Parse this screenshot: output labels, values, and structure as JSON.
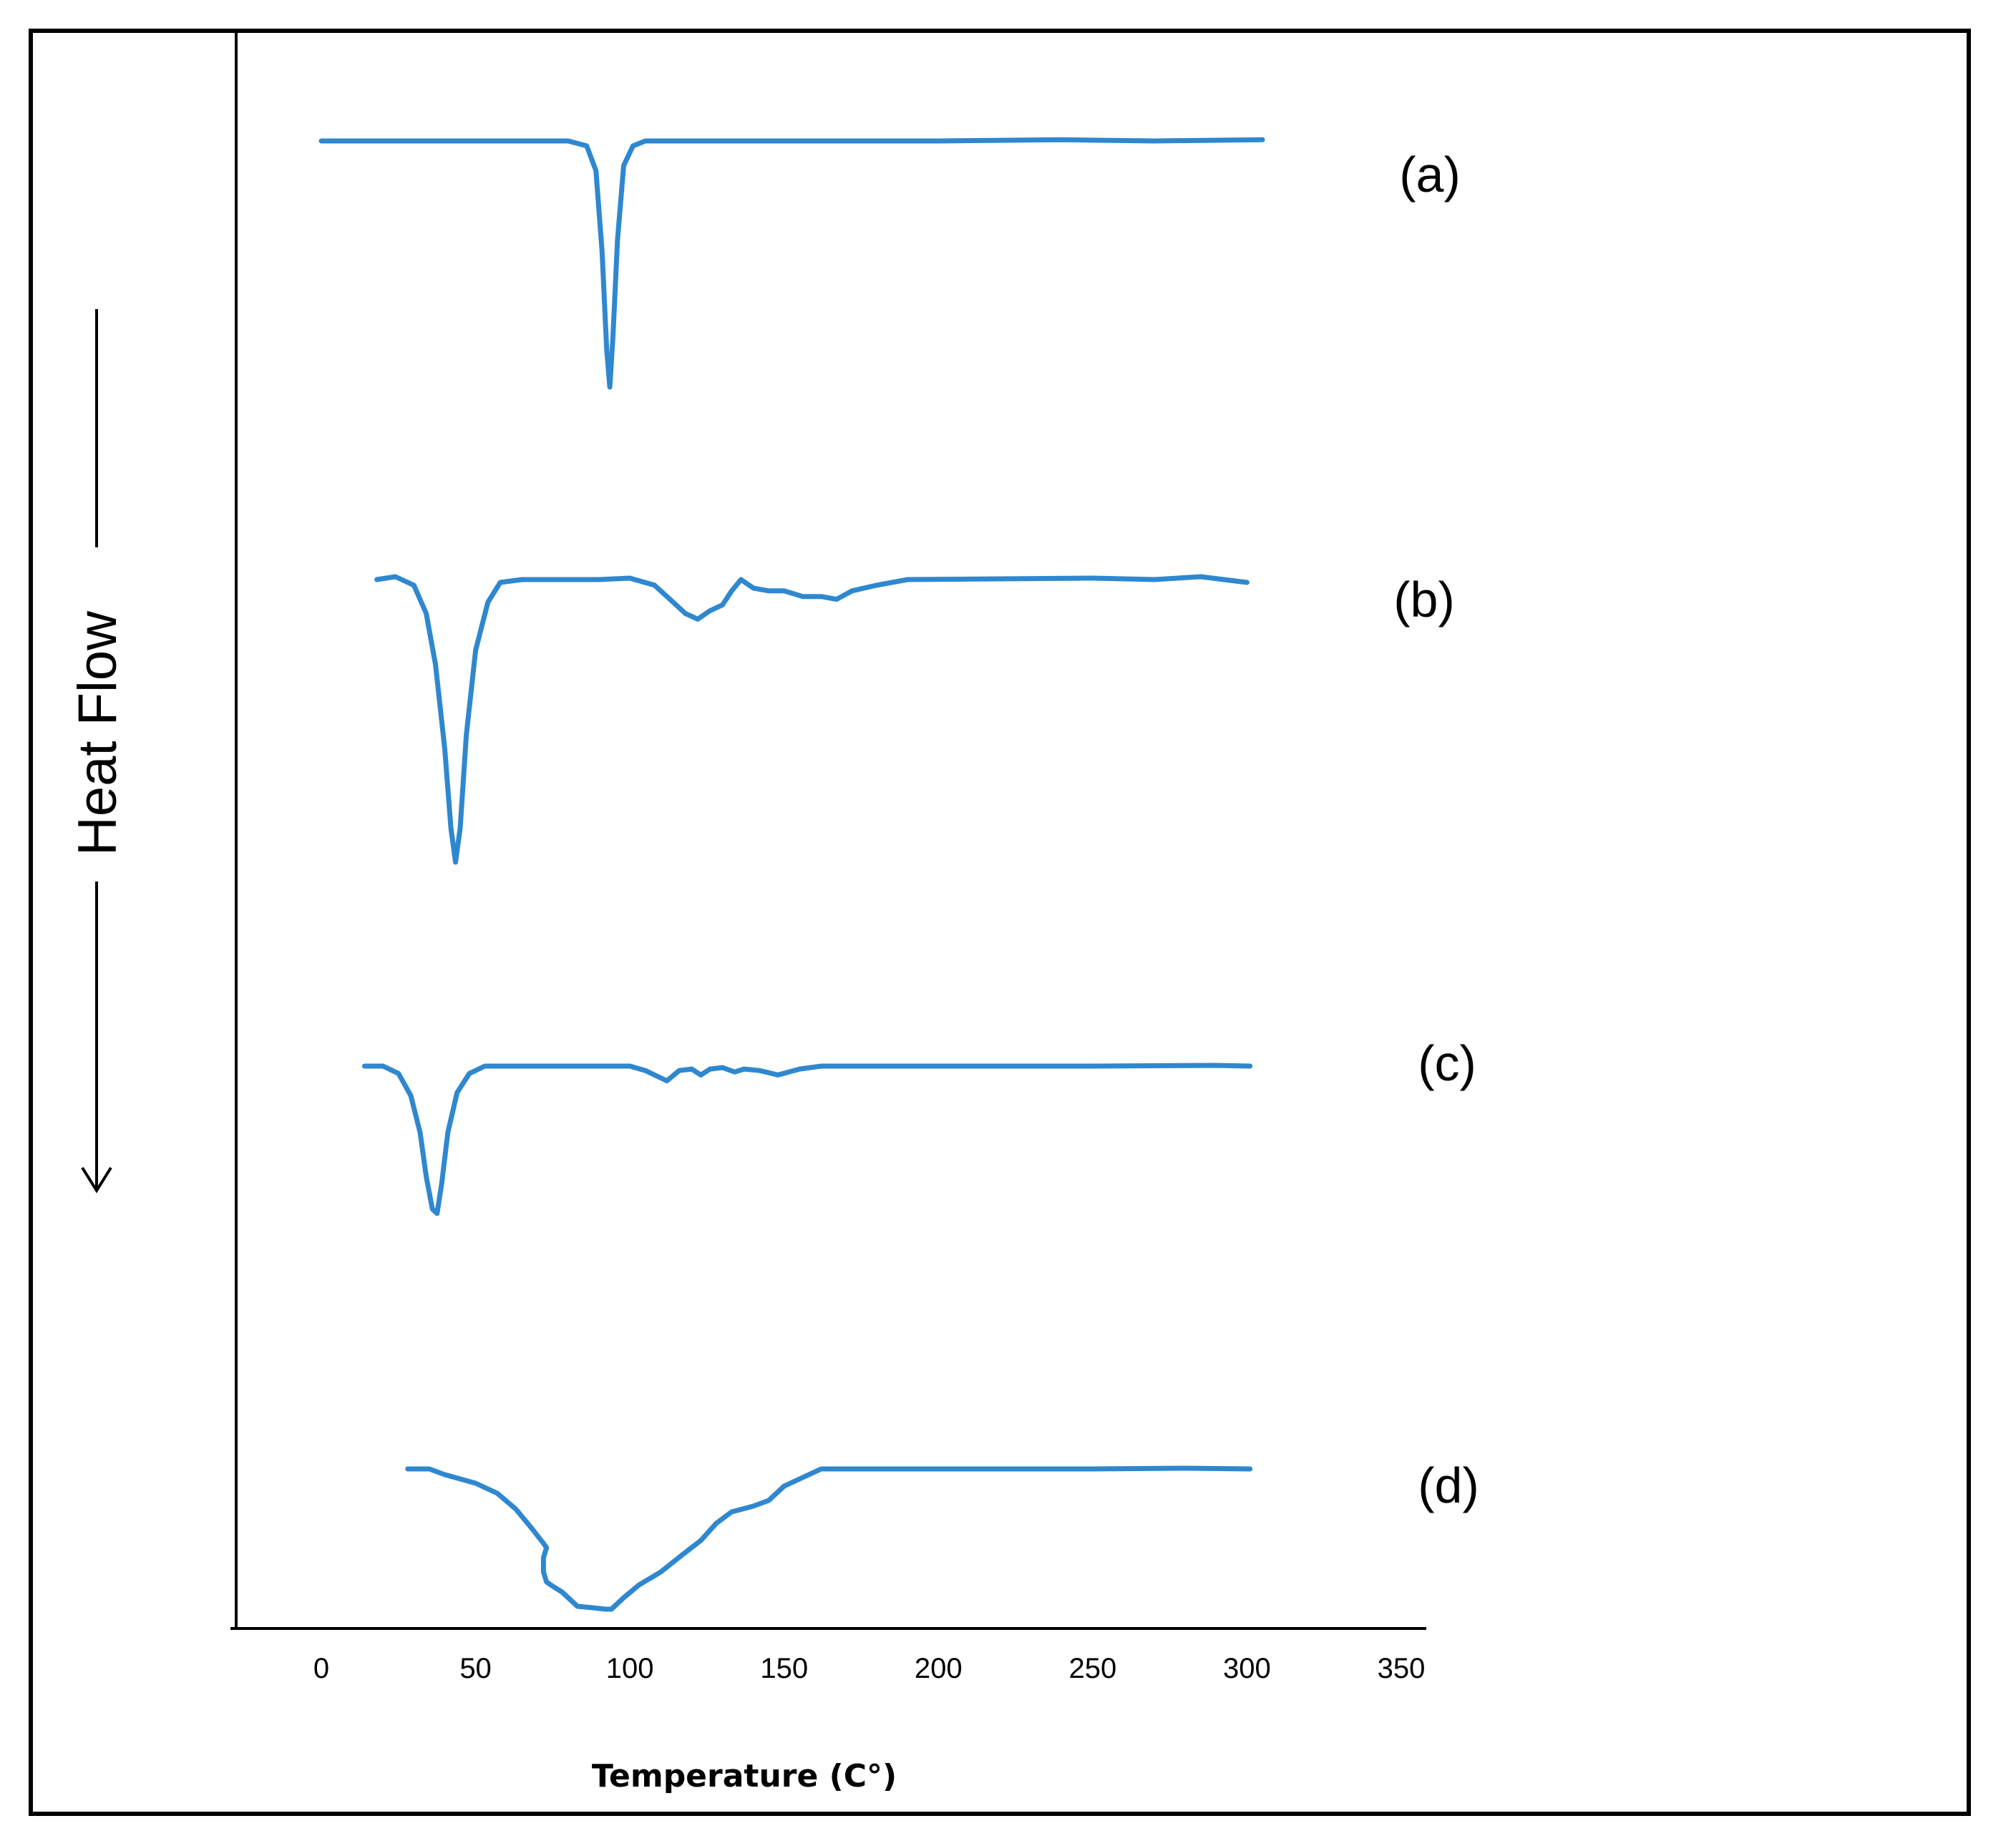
{
  "chart_data": {
    "type": "line",
    "title": "",
    "xlabel": "Temperature (C°)",
    "ylabel": "Heat Flow",
    "y_direction_note": "arrow",
    "xlim": [
      -28,
      358
    ],
    "x_ticks": [
      0,
      50,
      100,
      150,
      200,
      250,
      300,
      350
    ],
    "grid": false,
    "legend": "none",
    "line_color": "#2F88CF",
    "series": [
      {
        "name": "(a)",
        "baseline": 0,
        "points": [
          [
            0,
            0
          ],
          [
            30,
            0
          ],
          [
            60,
            0
          ],
          [
            80,
            0
          ],
          [
            86,
            -0.02
          ],
          [
            89,
            -0.12
          ],
          [
            91,
            -0.45
          ],
          [
            92.5,
            -0.85
          ],
          [
            93.5,
            -1.0
          ],
          [
            94.5,
            -0.8
          ],
          [
            96,
            -0.4
          ],
          [
            98,
            -0.1
          ],
          [
            101,
            -0.02
          ],
          [
            105,
            0
          ],
          [
            150,
            0
          ],
          [
            200,
            0
          ],
          [
            240,
            0.005
          ],
          [
            270,
            0
          ],
          [
            305,
            0.005
          ]
        ]
      },
      {
        "name": "(b)",
        "baseline": 0,
        "points": [
          [
            18,
            0
          ],
          [
            24,
            0.01
          ],
          [
            30,
            -0.02
          ],
          [
            34,
            -0.12
          ],
          [
            37,
            -0.3
          ],
          [
            40,
            -0.6
          ],
          [
            42,
            -0.88
          ],
          [
            43.5,
            -1.0
          ],
          [
            45,
            -0.88
          ],
          [
            47,
            -0.55
          ],
          [
            50,
            -0.25
          ],
          [
            54,
            -0.08
          ],
          [
            58,
            -0.01
          ],
          [
            65,
            0
          ],
          [
            90,
            0
          ],
          [
            100,
            0.005
          ],
          [
            108,
            -0.02
          ],
          [
            114,
            -0.08
          ],
          [
            118,
            -0.12
          ],
          [
            122,
            -0.14
          ],
          [
            126,
            -0.11
          ],
          [
            130,
            -0.09
          ],
          [
            133,
            -0.04
          ],
          [
            136,
            0.0
          ],
          [
            140,
            -0.03
          ],
          [
            145,
            -0.04
          ],
          [
            150,
            -0.04
          ],
          [
            156,
            -0.06
          ],
          [
            162,
            -0.06
          ],
          [
            167,
            -0.07
          ],
          [
            172,
            -0.04
          ],
          [
            180,
            -0.02
          ],
          [
            190,
            0
          ],
          [
            250,
            0.005
          ],
          [
            270,
            0
          ],
          [
            285,
            0.01
          ],
          [
            300,
            -0.01
          ]
        ]
      },
      {
        "name": "(c)",
        "baseline": 0,
        "points": [
          [
            14,
            0
          ],
          [
            20,
            0
          ],
          [
            25,
            -0.05
          ],
          [
            29,
            -0.2
          ],
          [
            32,
            -0.45
          ],
          [
            34,
            -0.75
          ],
          [
            36,
            -0.97
          ],
          [
            37.5,
            -1.0
          ],
          [
            39,
            -0.8
          ],
          [
            41,
            -0.45
          ],
          [
            44,
            -0.18
          ],
          [
            48,
            -0.05
          ],
          [
            53,
            0
          ],
          [
            100,
            0
          ],
          [
            105,
            -0.03
          ],
          [
            110,
            -0.08
          ],
          [
            112,
            -0.1
          ],
          [
            116,
            -0.03
          ],
          [
            120,
            -0.02
          ],
          [
            123,
            -0.06
          ],
          [
            126,
            -0.02
          ],
          [
            130,
            -0.01
          ],
          [
            134,
            -0.04
          ],
          [
            137,
            -0.02
          ],
          [
            142,
            -0.03
          ],
          [
            148,
            -0.06
          ],
          [
            155,
            -0.02
          ],
          [
            162,
            0
          ],
          [
            200,
            0
          ],
          [
            250,
            0
          ],
          [
            290,
            0.005
          ],
          [
            301,
            0
          ]
        ]
      },
      {
        "name": "(d)",
        "baseline": 0,
        "points": [
          [
            28,
            0
          ],
          [
            35,
            0
          ],
          [
            40,
            -0.04
          ],
          [
            50,
            -0.1
          ],
          [
            57,
            -0.17
          ],
          [
            63,
            -0.28
          ],
          [
            68,
            -0.41
          ],
          [
            72,
            -0.52
          ],
          [
            73,
            -0.55
          ],
          [
            72,
            -0.62
          ],
          [
            72,
            -0.72
          ],
          [
            73,
            -0.79
          ],
          [
            75,
            -0.82
          ],
          [
            78,
            -0.86
          ],
          [
            83,
            -0.96
          ],
          [
            88,
            -0.97
          ],
          [
            92,
            -0.98
          ],
          [
            94,
            -0.98
          ],
          [
            98,
            -0.9
          ],
          [
            103,
            -0.81
          ],
          [
            110,
            -0.72
          ],
          [
            117,
            -0.6
          ],
          [
            123,
            -0.5
          ],
          [
            128,
            -0.38
          ],
          [
            133,
            -0.3
          ],
          [
            140,
            -0.26
          ],
          [
            145,
            -0.22
          ],
          [
            150,
            -0.12
          ],
          [
            158,
            -0.04
          ],
          [
            162,
            0
          ],
          [
            200,
            0
          ],
          [
            250,
            0
          ],
          [
            280,
            0.005
          ],
          [
            301,
            0
          ]
        ]
      }
    ]
  }
}
